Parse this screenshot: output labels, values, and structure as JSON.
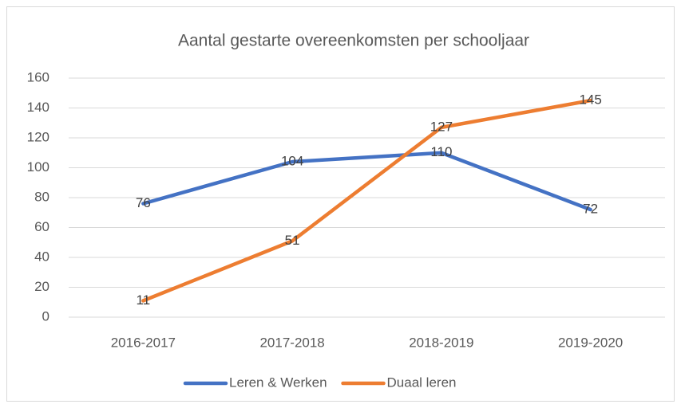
{
  "chart_data": {
    "type": "line",
    "title": "Aantal gestarte overeenkomsten per schooljaar",
    "categories": [
      "2016-2017",
      "2017-2018",
      "2018-2019",
      "2019-2020"
    ],
    "series": [
      {
        "name": "Leren & Werken",
        "color": "#4472c4",
        "values": [
          76,
          104,
          110,
          72
        ]
      },
      {
        "name": "Duaal leren",
        "color": "#ed7d31",
        "values": [
          11,
          51,
          127,
          145
        ]
      }
    ],
    "ylim": [
      0,
      160
    ],
    "yticks": [
      0,
      20,
      40,
      60,
      80,
      100,
      120,
      140,
      160
    ],
    "grid": true,
    "legend": "bottom"
  }
}
